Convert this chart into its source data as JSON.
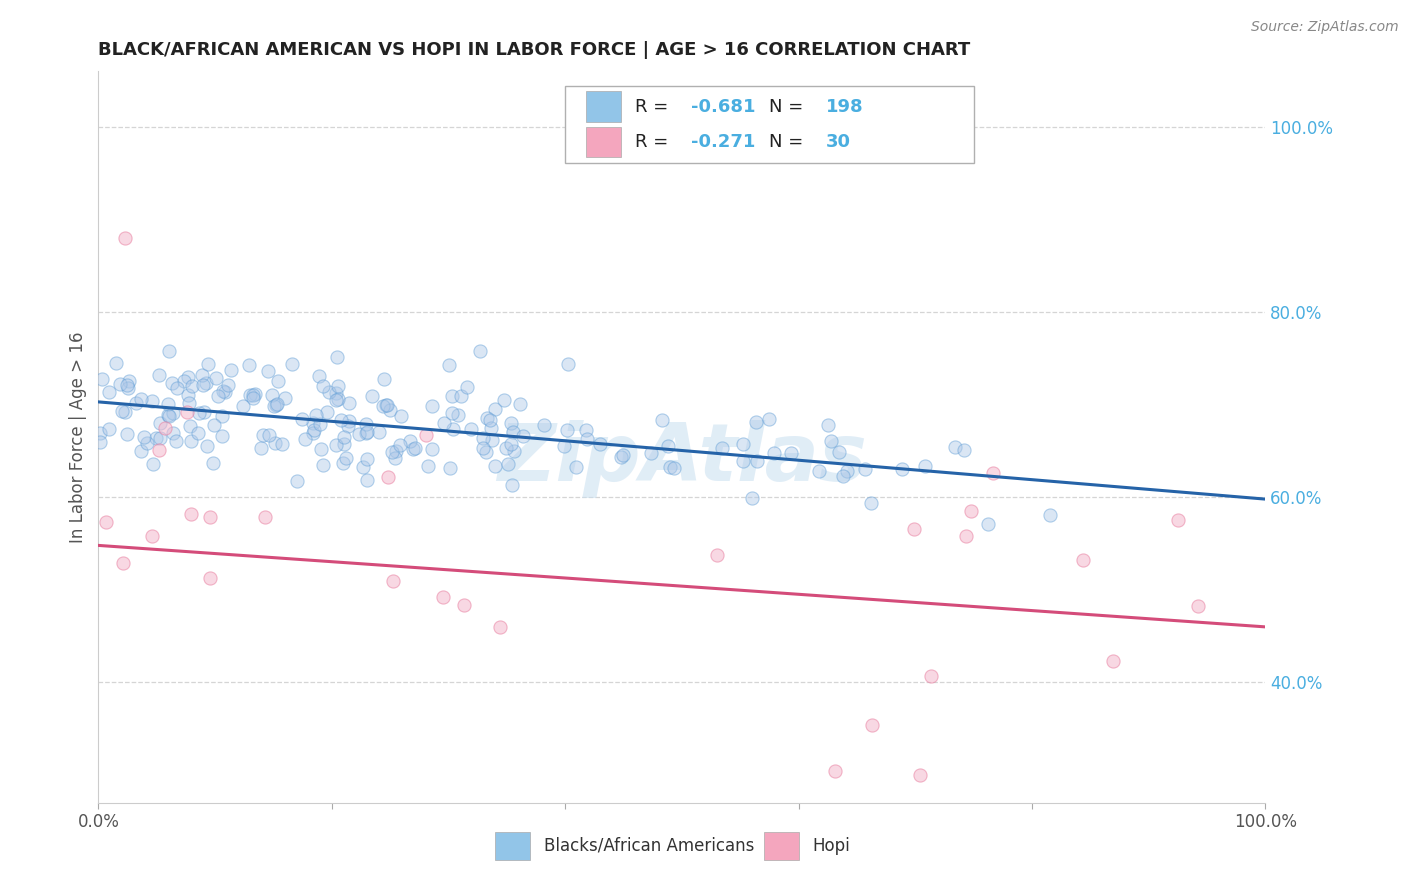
{
  "title": "BLACK/AFRICAN AMERICAN VS HOPI IN LABOR FORCE | AGE > 16 CORRELATION CHART",
  "source_text": "Source: ZipAtlas.com",
  "ylabel": "In Labor Force | Age > 16",
  "xlim": [
    0.0,
    1.0
  ],
  "ylim": [
    0.27,
    1.06
  ],
  "xticks": [
    0.0,
    0.2,
    0.4,
    0.6,
    0.8,
    1.0
  ],
  "yticks_right": [
    0.4,
    0.6,
    0.8,
    1.0
  ],
  "ytick_labels_right": [
    "40.0%",
    "60.0%",
    "80.0%",
    "100.0%"
  ],
  "blue_R": -0.681,
  "blue_N": 198,
  "pink_R": -0.271,
  "pink_N": 30,
  "blue_scatter_face": "#aec8e8",
  "blue_scatter_edge": "#5b9bd5",
  "pink_scatter_face": "#f4b8cc",
  "pink_scatter_edge": "#e87fa0",
  "blue_line_color": "#2563a8",
  "pink_line_color": "#d44c7a",
  "blue_legend_color": "#92c5e8",
  "pink_legend_color": "#f4a6be",
  "blue_scatter_alpha": 0.45,
  "pink_scatter_alpha": 0.55,
  "marker_size": 90,
  "background_color": "#ffffff",
  "grid_color": "#d5d5d5",
  "title_color": "#222222",
  "label_color": "#555555",
  "value_color": "#4aaee0",
  "legend_label_blue": "Blacks/African Americans",
  "legend_label_pink": "Hopi",
  "watermark": "ZipAtlas",
  "watermark_color": "#c8dff0",
  "blue_line_start_x": 0.0,
  "blue_line_start_y": 0.703,
  "blue_line_end_x": 1.0,
  "blue_line_end_y": 0.598,
  "pink_line_start_x": 0.0,
  "pink_line_start_y": 0.548,
  "pink_line_end_x": 1.0,
  "pink_line_end_y": 0.46,
  "seed": 77
}
